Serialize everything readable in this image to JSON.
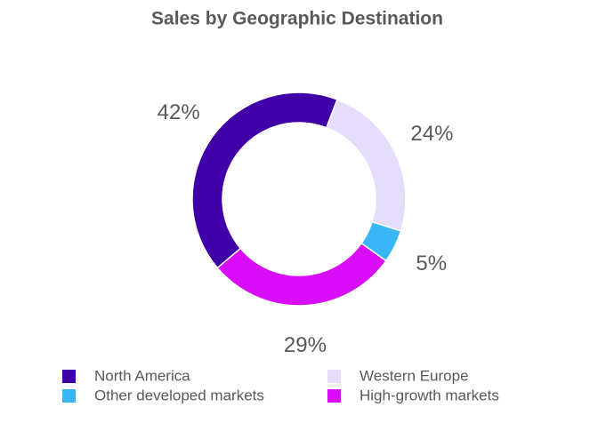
{
  "chart_data": {
    "type": "donut",
    "title": "Sales by Geographic Destination",
    "categories": [
      "North America",
      "Western Europe",
      "Other developed markets",
      "High-growth markets"
    ],
    "values": [
      42,
      24,
      5,
      29
    ],
    "value_labels": [
      "42%",
      "24%",
      "5%",
      "29%"
    ],
    "colors": [
      "#3f00a8",
      "#e6dcfc",
      "#38b6f6",
      "#d90cf8"
    ],
    "legend": "bottom"
  }
}
